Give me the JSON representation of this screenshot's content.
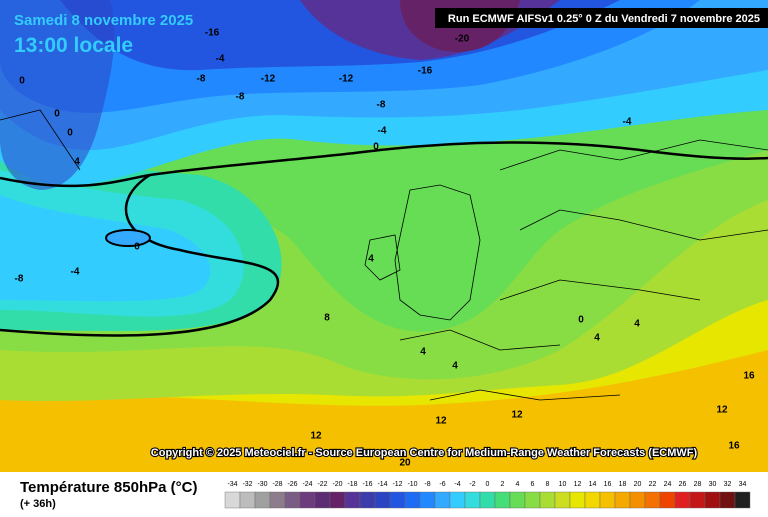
{
  "header": {
    "date": "Samedi 8 novembre 2025",
    "time": "13:00 locale",
    "run": "Run ECMWF AIFSv1 0.25° 0 Z du Vendredi 7 novembre 2025"
  },
  "copyright": "Copyright © 2025 Meteociel.fr - Source European Centre for Medium-Range Weather Forecasts (ECMWF)",
  "footer": {
    "title": "Température 850hPa (°C)",
    "lead": "(+ 36h)"
  },
  "contour_labels": [
    -16,
    -20,
    -4,
    -8,
    -12,
    -12,
    -16,
    -8,
    -8,
    -4,
    0,
    -4,
    0,
    0,
    0,
    4,
    0,
    -4,
    -8,
    4,
    8,
    4,
    4,
    0,
    4,
    4,
    12,
    12,
    12,
    12,
    16,
    16,
    20
  ],
  "legend": {
    "values": [
      -34,
      -32,
      -30,
      -28,
      -26,
      -24,
      -22,
      -20,
      -18,
      -16,
      -14,
      -12,
      -10,
      -8,
      -6,
      -4,
      -2,
      0,
      2,
      4,
      6,
      8,
      10,
      12,
      14,
      16,
      18,
      20,
      22,
      24,
      26,
      28,
      30,
      32,
      34
    ],
    "colors": [
      "#d8d8d8",
      "#bcbcbc",
      "#a0a0a0",
      "#8c7c8c",
      "#7a5c84",
      "#6c3c7c",
      "#5c2c74",
      "#662266",
      "#553399",
      "#3c3caa",
      "#2c44c4",
      "#2255e0",
      "#1e6cf4",
      "#2288ff",
      "#33aaff",
      "#33ccff",
      "#33dddd",
      "#33ddaa",
      "#44dd77",
      "#66dd55",
      "#88dd44",
      "#aadd33",
      "#ccdd22",
      "#e6e600",
      "#f0d800",
      "#f4c000",
      "#f4a800",
      "#f49000",
      "#f47000",
      "#ee4400",
      "#e02020",
      "#c41818",
      "#a01010",
      "#701010",
      "#202020"
    ]
  }
}
